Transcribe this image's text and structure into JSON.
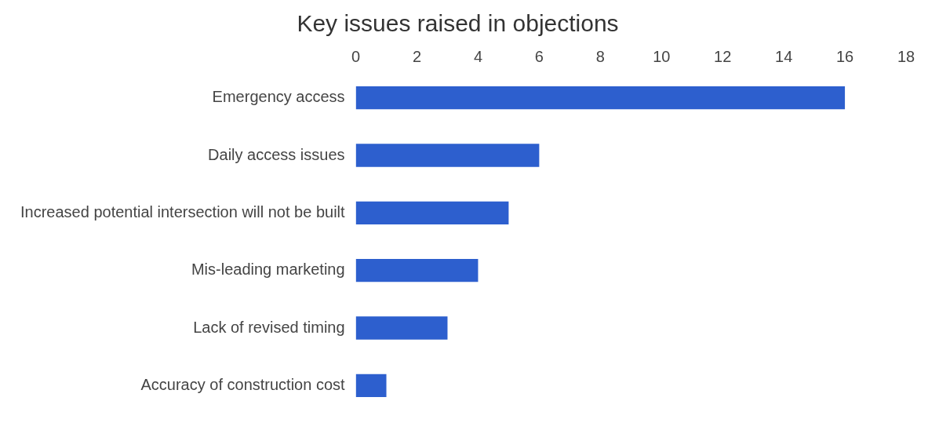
{
  "chart_data": {
    "type": "bar",
    "orientation": "horizontal",
    "title": "Key issues raised in objections",
    "categories": [
      "Emergency access",
      "Daily access issues",
      "Increased potential intersection will not be built",
      "Mis-leading marketing",
      "Lack of revised timing",
      "Accuracy of construction cost"
    ],
    "values": [
      16,
      6,
      5,
      4,
      3,
      1
    ],
    "color": "#2d5fce",
    "xlim": [
      0,
      18
    ],
    "xticks": [
      0,
      2,
      4,
      6,
      8,
      10,
      12,
      14,
      16,
      18
    ],
    "grid": false,
    "legend": false
  }
}
